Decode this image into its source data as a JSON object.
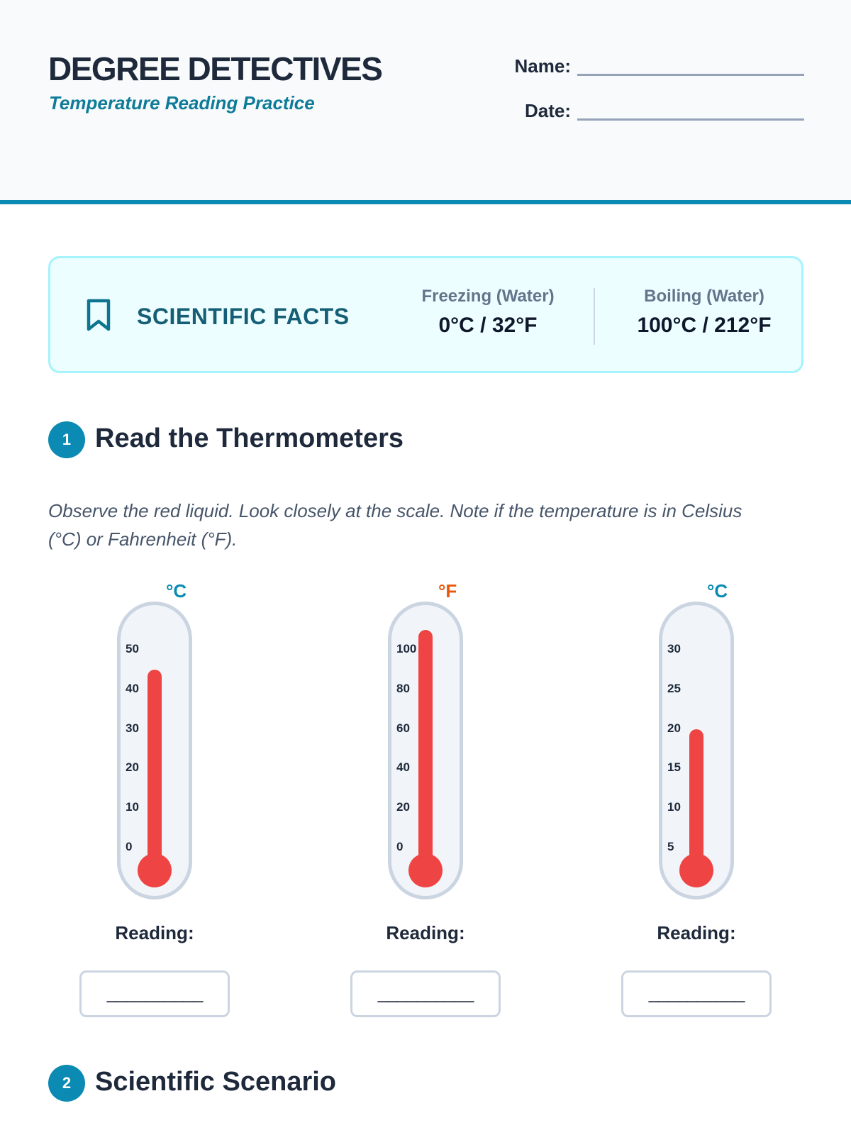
{
  "header": {
    "title": "DEGREE DETECTIVES",
    "subtitle": "Temperature Reading Practice",
    "name_label": "Name:",
    "date_label": "Date:"
  },
  "facts": {
    "icon": "bookmark-icon",
    "title": "SCIENTIFIC FACTS",
    "freezing_label": "Freezing (Water)",
    "freezing_value": "0°C / 32°F",
    "boiling_label": "Boiling (Water)",
    "boiling_value": "100°C / 212°F"
  },
  "section1": {
    "number": "1",
    "title": "Read the Thermometers",
    "instructions": "Observe the red liquid. Look closely at the scale. Note if the temperature is in Celsius (°C) or Fahrenheit (°F)."
  },
  "thermometers": [
    {
      "unit": "°C",
      "ticks": [
        "50",
        "40",
        "30",
        "20",
        "10",
        "0"
      ],
      "scale_min": 0,
      "scale_max": 50,
      "value": 45,
      "reading_label": "Reading:",
      "answer_blank": "__________"
    },
    {
      "unit": "°F",
      "ticks": [
        "100",
        "80",
        "60",
        "40",
        "20",
        "0"
      ],
      "scale_min": 0,
      "scale_max": 100,
      "value": 110,
      "reading_label": "Reading:",
      "answer_blank": "__________"
    },
    {
      "unit": "°C",
      "ticks": [
        "30",
        "25",
        "20",
        "15",
        "10",
        "5"
      ],
      "scale_min": 5,
      "scale_max": 30,
      "value": 20,
      "reading_label": "Reading:",
      "answer_blank": "__________"
    }
  ],
  "section2": {
    "number": "2",
    "title": "Scientific Scenario"
  },
  "colors": {
    "accent": "#0b8bb3",
    "liquid": "#ef4444",
    "fahrenheit": "#e8590c"
  }
}
